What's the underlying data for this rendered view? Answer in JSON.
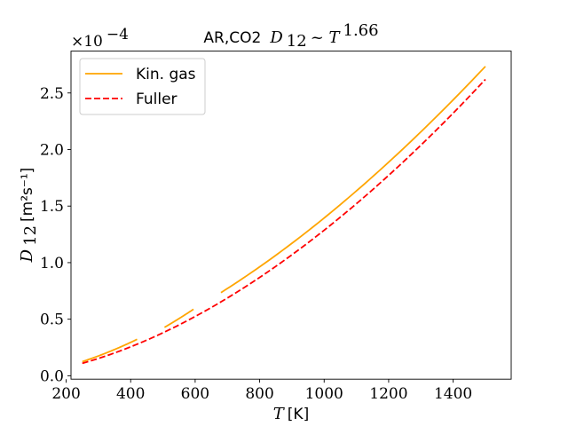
{
  "chart_data": {
    "type": "line",
    "title_prefix": "AR,CO2",
    "title_formula": "D",
    "title_formula_sub": "12",
    "title_formula_rel": " ~ T",
    "title_formula_exp": "1.66",
    "xlabel_symbol": "T",
    "xlabel_unit": " [K]",
    "ylabel_symbol": "D",
    "ylabel_sub": "12",
    "ylabel_unit": " [m²s⁻¹]",
    "y_scale_label": "×10",
    "y_scale_exp": "−4",
    "xlim": [
      215,
      1580
    ],
    "ylim": [
      -0.03,
      2.87
    ],
    "xticks": [
      200,
      400,
      600,
      800,
      1000,
      1200,
      1400
    ],
    "xtick_labels": [
      "200",
      "400",
      "600",
      "800",
      "1000",
      "1200",
      "1400"
    ],
    "yticks": [
      0.0,
      0.5,
      1.0,
      1.5,
      2.0,
      2.5
    ],
    "ytick_labels": [
      "0.0",
      "0.5",
      "1.0",
      "1.5",
      "2.0",
      "2.5"
    ],
    "legend_position": "top-left",
    "grid": false,
    "series": [
      {
        "name": "Kin. gas",
        "color": "#ffa500",
        "style": "solid",
        "segments": [
          {
            "x": [
              250,
              420
            ],
            "y": [
              0.125,
              0.322
            ],
            "exponent": 1.75
          },
          {
            "x": [
              505,
              595
            ],
            "y": [
              0.428,
              0.588
            ],
            "exponent": 1.75
          },
          {
            "x": [
              680,
              1500
            ],
            "y": [
              0.735,
              2.735
            ],
            "exponent": 1.66
          }
        ]
      },
      {
        "name": "Fuller",
        "color": "#ff0000",
        "style": "dashed",
        "segments": [
          {
            "x": [
              250,
              1500
            ],
            "y": [
              0.11,
              2.62
            ],
            "exponent": 1.75
          }
        ]
      }
    ]
  }
}
